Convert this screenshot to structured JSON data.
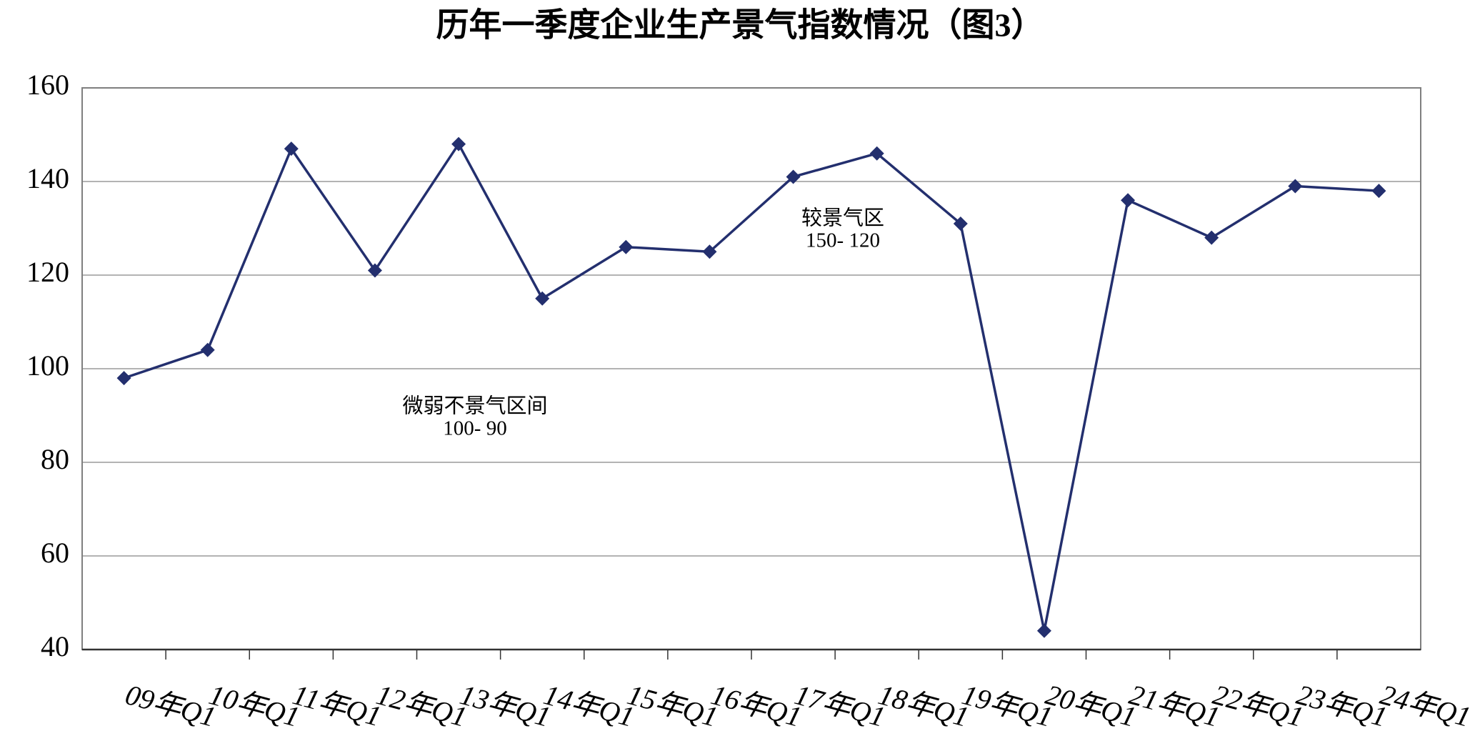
{
  "chart_data": {
    "type": "line",
    "title": "历年一季度企业生产景气指数情况（图3）",
    "categories": [
      "09年Q1",
      "10年Q1",
      "11年Q1",
      "12年Q1",
      "13年Q1",
      "14年Q1",
      "15年Q1",
      "16年Q1",
      "17年Q1",
      "18年Q1",
      "19年Q1",
      "20年Q1",
      "21年Q1",
      "22年Q1",
      "23年Q1",
      "24年Q1"
    ],
    "series": [
      {
        "color": "#232f6e",
        "values": [
          98,
          104,
          147,
          121,
          148,
          115,
          126,
          125,
          141,
          146,
          131,
          44,
          136,
          128,
          139,
          138
        ]
      }
    ],
    "ylim": [
      40,
      160
    ],
    "yticks": [
      40,
      60,
      80,
      100,
      120,
      140,
      160
    ],
    "grid": true,
    "annotations": [
      {
        "lines": [
          "较景气区",
          "150- 120"
        ]
      },
      {
        "lines": [
          "微弱不景气区间",
          "100- 90"
        ]
      }
    ]
  }
}
